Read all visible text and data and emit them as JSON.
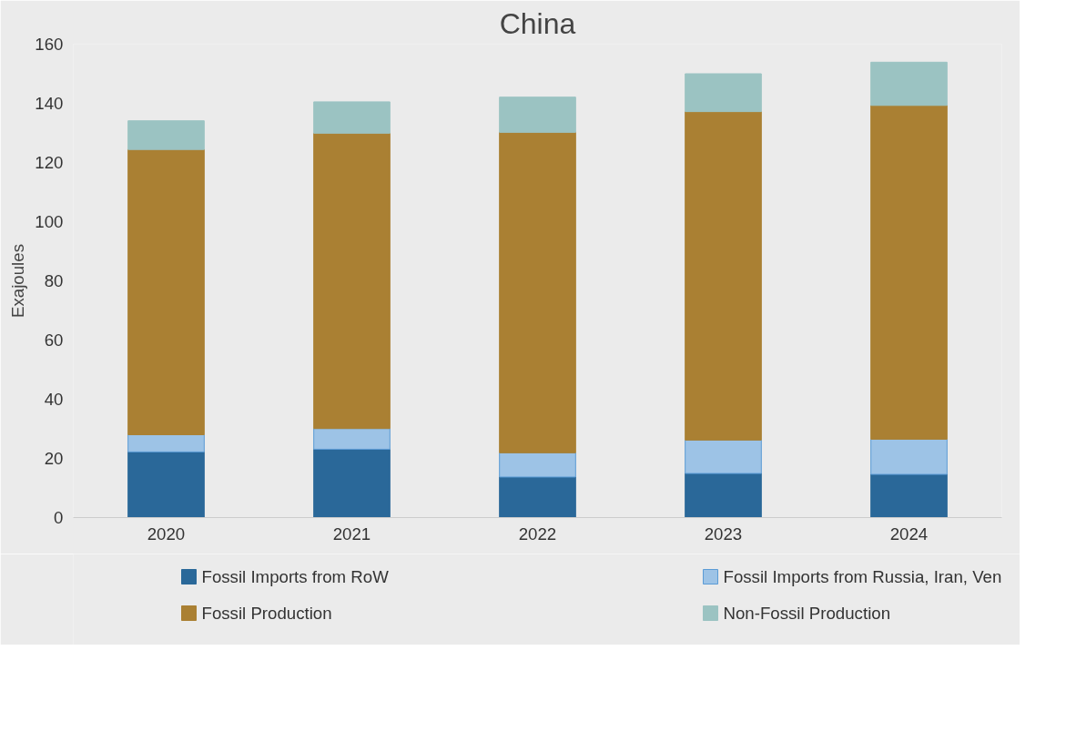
{
  "chart_data": {
    "type": "bar",
    "title": "China",
    "ylabel": "Exajoules",
    "categories": [
      "2020",
      "2021",
      "2022",
      "2023",
      "2024"
    ],
    "stacked": true,
    "ylim": [
      0,
      160
    ],
    "yticks": [
      0,
      20,
      40,
      60,
      80,
      100,
      120,
      140,
      160
    ],
    "grid": false,
    "legend": "bottom",
    "series": [
      {
        "name": "Fossil Imports from RoW",
        "color": "#2a6899",
        "values": [
          22.2,
          23.1,
          13.7,
          14.9,
          14.6
        ]
      },
      {
        "name": "Fossil Imports from Russia, Iran, Ven",
        "color": "#9dc3e6",
        "values": [
          5.8,
          7.0,
          8.2,
          11.3,
          11.9
        ]
      },
      {
        "name": "Fossil Production",
        "color": "#aa8033",
        "values": [
          96.4,
          99.8,
          108.3,
          111.0,
          112.8
        ]
      },
      {
        "name": "Non-Fossil Production",
        "color": "#9bc3c2",
        "values": [
          9.7,
          10.6,
          11.9,
          12.8,
          14.6
        ]
      }
    ]
  }
}
